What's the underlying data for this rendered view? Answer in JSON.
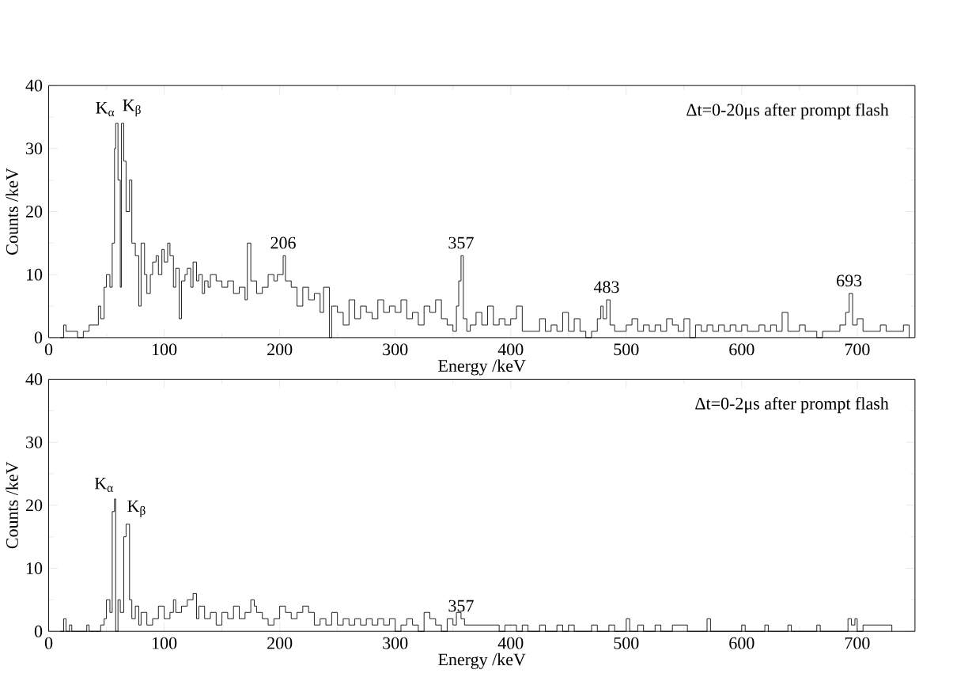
{
  "chart_data": [
    {
      "type": "step",
      "xlabel": "Energy /keV",
      "ylabel": "Counts /keV",
      "color": "#000000",
      "x": [
        10,
        13,
        15,
        20,
        25,
        30,
        35,
        40,
        43,
        45,
        48,
        50,
        53,
        55,
        57,
        58,
        60,
        62,
        63,
        65,
        67,
        70,
        72,
        75,
        78,
        80,
        83,
        85,
        88,
        90,
        93,
        95,
        98,
        100,
        103,
        105,
        108,
        110,
        113,
        115,
        118,
        120,
        123,
        125,
        128,
        130,
        133,
        135,
        138,
        140,
        145,
        150,
        155,
        160,
        165,
        170,
        172,
        175,
        180,
        185,
        190,
        195,
        198,
        200,
        203,
        205,
        210,
        215,
        220,
        225,
        230,
        235,
        238,
        240,
        243,
        245,
        250,
        255,
        260,
        265,
        270,
        275,
        280,
        285,
        290,
        295,
        300,
        305,
        310,
        315,
        320,
        325,
        330,
        335,
        340,
        345,
        350,
        353,
        355,
        357,
        359,
        362,
        365,
        370,
        375,
        380,
        385,
        390,
        395,
        400,
        405,
        410,
        415,
        420,
        425,
        430,
        435,
        440,
        445,
        450,
        455,
        460,
        465,
        470,
        475,
        478,
        480,
        483,
        486,
        490,
        495,
        500,
        505,
        510,
        515,
        520,
        525,
        530,
        535,
        540,
        545,
        550,
        555,
        560,
        565,
        570,
        575,
        580,
        585,
        590,
        595,
        600,
        605,
        610,
        615,
        620,
        625,
        630,
        635,
        640,
        645,
        650,
        655,
        660,
        665,
        670,
        680,
        685,
        690,
        693,
        696,
        700,
        705,
        710,
        715,
        720,
        725,
        730,
        735,
        740,
        745
      ],
      "values": [
        0,
        2,
        1,
        1,
        0,
        1,
        2,
        2,
        5,
        3,
        8,
        10,
        8,
        15,
        30,
        34,
        25,
        8,
        34,
        28,
        20,
        25,
        15,
        13,
        5,
        15,
        10,
        7,
        10,
        12,
        13,
        10,
        14,
        12,
        15,
        13,
        8,
        11,
        3,
        9,
        10,
        11,
        8,
        12,
        9,
        10,
        7,
        9,
        8,
        10,
        9,
        8,
        9,
        7,
        8,
        6,
        15,
        9,
        7,
        8,
        10,
        9,
        10,
        10,
        13,
        9,
        8,
        5,
        8,
        6,
        7,
        4,
        8,
        8,
        0,
        5,
        4,
        2,
        6,
        3,
        5,
        4,
        3,
        6,
        4,
        5,
        4,
        6,
        3,
        4,
        2,
        5,
        4,
        6,
        3,
        2,
        1,
        5,
        9,
        13,
        3,
        1,
        2,
        4,
        2,
        5,
        2,
        3,
        2,
        3,
        5,
        1,
        1,
        1,
        3,
        1,
        2,
        1,
        4,
        1,
        3,
        1,
        0,
        1,
        3,
        5,
        3,
        6,
        2,
        1,
        1,
        2,
        3,
        1,
        2,
        1,
        2,
        1,
        3,
        2,
        1,
        3,
        0,
        2,
        1,
        2,
        1,
        2,
        1,
        2,
        1,
        2,
        1,
        1,
        2,
        1,
        2,
        1,
        4,
        1,
        1,
        2,
        1,
        1,
        0,
        1,
        1,
        2,
        4,
        7,
        2,
        3,
        1,
        1,
        1,
        2,
        1,
        1,
        1,
        2,
        0
      ],
      "xlim": [
        0,
        750
      ],
      "ylim": [
        0,
        40
      ],
      "xticks": [
        0,
        100,
        200,
        300,
        400,
        500,
        600,
        700
      ],
      "yticks": [
        0,
        10,
        20,
        30,
        40
      ],
      "annotations": [
        "Δt=0-20μs after prompt flash",
        {
          "text": "K$_{α}$",
          "x": 58,
          "y": 34
        },
        {
          "text": "K$_{β}$",
          "x": 63,
          "y": 34
        },
        {
          "text": "206",
          "x": 203,
          "y": 13
        },
        {
          "text": "357",
          "x": 357,
          "y": 13
        },
        {
          "text": "483",
          "x": 483,
          "y": 6
        },
        {
          "text": "693",
          "x": 693,
          "y": 7
        }
      ]
    },
    {
      "type": "step",
      "xlabel": "Energy /keV",
      "ylabel": "Counts /keV",
      "color": "#000000",
      "x": [
        10,
        13,
        15,
        18,
        20,
        33,
        35,
        45,
        48,
        50,
        53,
        55,
        57,
        58,
        60,
        62,
        65,
        67,
        70,
        72,
        75,
        78,
        80,
        85,
        90,
        95,
        100,
        105,
        108,
        110,
        115,
        120,
        125,
        128,
        130,
        135,
        140,
        145,
        150,
        155,
        160,
        165,
        170,
        175,
        178,
        180,
        185,
        190,
        195,
        200,
        205,
        210,
        215,
        220,
        225,
        230,
        235,
        240,
        245,
        250,
        255,
        260,
        265,
        270,
        275,
        280,
        285,
        290,
        295,
        300,
        305,
        310,
        315,
        320,
        325,
        330,
        335,
        340,
        345,
        350,
        353,
        357,
        360,
        365,
        370,
        375,
        380,
        385,
        390,
        395,
        400,
        405,
        410,
        415,
        425,
        430,
        440,
        445,
        450,
        455,
        470,
        475,
        485,
        490,
        500,
        503,
        510,
        515,
        525,
        530,
        540,
        550,
        553,
        570,
        573,
        600,
        603,
        620,
        623,
        640,
        643,
        665,
        668,
        692,
        695,
        698,
        700,
        705,
        715,
        720,
        725,
        730
      ],
      "values": [
        0,
        2,
        0,
        1,
        0,
        1,
        0,
        1,
        2,
        5,
        3,
        19,
        21,
        0,
        5,
        3,
        15,
        17,
        5,
        2,
        4,
        1,
        3,
        1,
        2,
        4,
        2,
        3,
        5,
        3,
        4,
        5,
        6,
        2,
        4,
        2,
        3,
        1,
        3,
        2,
        4,
        2,
        3,
        5,
        4,
        3,
        2,
        1,
        2,
        4,
        3,
        2,
        3,
        4,
        3,
        1,
        2,
        1,
        3,
        1,
        2,
        1,
        2,
        1,
        2,
        1,
        2,
        1,
        2,
        0,
        1,
        2,
        1,
        0,
        3,
        2,
        1,
        0,
        2,
        1,
        3,
        2,
        1,
        1,
        1,
        1,
        1,
        1,
        0,
        1,
        1,
        0,
        1,
        0,
        1,
        0,
        1,
        0,
        1,
        0,
        1,
        0,
        1,
        0,
        2,
        0,
        1,
        0,
        1,
        0,
        1,
        1,
        0,
        2,
        0,
        1,
        0,
        1,
        0,
        1,
        0,
        1,
        0,
        2,
        1,
        2,
        0,
        1,
        1,
        1,
        1,
        0
      ],
      "xlim": [
        0,
        750
      ],
      "ylim": [
        0,
        40
      ],
      "xticks": [
        0,
        100,
        200,
        300,
        400,
        500,
        600,
        700
      ],
      "yticks": [
        0,
        10,
        20,
        30,
        40
      ],
      "annotations": [
        "Δt=0-2μs after prompt flash",
        {
          "text": "K$_{α}$",
          "x": 57,
          "y": 21
        },
        {
          "text": "K$_{β}$",
          "x": 67,
          "y": 17
        },
        {
          "text": "357",
          "x": 357,
          "y": 2
        }
      ]
    }
  ]
}
